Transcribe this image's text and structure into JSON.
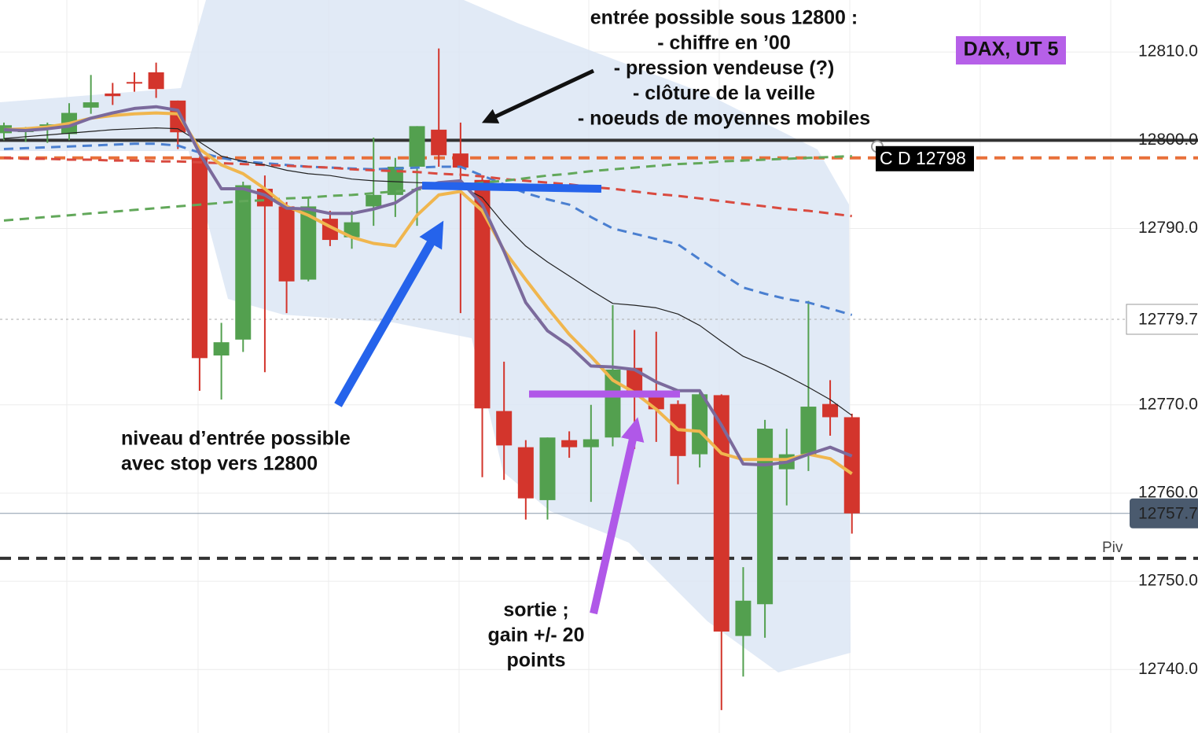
{
  "chart_data": {
    "type": "candlestick",
    "badge": "DAX, UT 5",
    "annotations": [
      {
        "lines": [
          "entrée possible sous 12800 :",
          "- chiffre en ’00",
          "- pression vendeuse (?)",
          "- clôture de la veille",
          "- noeuds de moyennes mobiles"
        ]
      },
      {
        "lines": [
          "niveau d’entrée possible",
          "avec stop vers 12800"
        ]
      },
      {
        "lines": [
          "sortie ;",
          "gain +/- 20",
          "points"
        ]
      }
    ],
    "categories": [
      null,
      null,
      null,
      null,
      null,
      null,
      null,
      null,
      null,
      null,
      null,
      null,
      null,
      null,
      null,
      null,
      null,
      null,
      null,
      null,
      null,
      null,
      null,
      null,
      null,
      null,
      null,
      null,
      null,
      null,
      null,
      null,
      null,
      null,
      null,
      null,
      null,
      null,
      null,
      null
    ],
    "open": [
      12800.8,
      12801.0,
      12801.7,
      12800.7,
      12803.7,
      12805.3,
      12806.6,
      12807.7,
      12804.5,
      12798.0,
      12775.6,
      12777.4,
      12794.5,
      12792.5,
      12784.2,
      12791.1,
      12789.0,
      12792.5,
      12793.8,
      12797.0,
      12801.2,
      12798.5,
      12795.5,
      12769.3,
      12765.2,
      12759.2,
      12766.0,
      12765.2,
      12766.3,
      12774.2,
      12771.6,
      12770.1,
      12764.4,
      12771.1,
      12743.8,
      12747.4,
      12762.7,
      12764.4,
      12770.1,
      12768.6
    ],
    "high": [
      12802.0,
      12801.5,
      12802.0,
      12804.2,
      12807.4,
      12806.5,
      12807.7,
      12808.8,
      12804.5,
      12798.0,
      12779.3,
      12795.3,
      12796.0,
      12793.0,
      12793.5,
      12792.0,
      12792.0,
      12800.3,
      12798.0,
      12801.6,
      12810.4,
      12802.0,
      12796.0,
      12774.9,
      12766.0,
      12766.3,
      12767.0,
      12770.0,
      12781.3,
      12778.5,
      12778.3,
      12770.5,
      12771.5,
      12771.2,
      12751.6,
      12768.3,
      12767.3,
      12781.8,
      12772.8,
      12769.0
    ],
    "low": [
      12800.0,
      12799.8,
      12799.7,
      12800.0,
      12803.0,
      12804.0,
      12805.5,
      12804.8,
      12799.0,
      12771.6,
      12770.6,
      12776.0,
      12773.7,
      12780.4,
      12784.0,
      12788.0,
      12787.7,
      12790.3,
      12791.3,
      12790.3,
      12797.0,
      12780.4,
      12761.8,
      12761.5,
      12757.0,
      12757.0,
      12764.0,
      12759.0,
      12765.3,
      12765.0,
      12765.8,
      12761.0,
      12762.9,
      12735.4,
      12739.2,
      12743.6,
      12758.6,
      12762.5,
      12766.5,
      12755.4
    ],
    "close": [
      12801.7,
      12801.1,
      12801.8,
      12803.1,
      12804.3,
      12805.0,
      12806.5,
      12805.8,
      12800.9,
      12775.3,
      12777.1,
      12794.9,
      12792.5,
      12784.0,
      12792.5,
      12788.7,
      12790.7,
      12793.8,
      12797.0,
      12801.6,
      12798.3,
      12796.9,
      12769.6,
      12765.4,
      12759.4,
      12766.3,
      12765.2,
      12766.1,
      12774.0,
      12771.6,
      12769.5,
      12764.2,
      12771.2,
      12744.3,
      12747.8,
      12767.3,
      12764.4,
      12769.8,
      12768.6,
      12757.7
    ],
    "up_color": "#53a04f",
    "down_color": "#d3352c",
    "series": [
      {
        "color": "#4a7fd0",
        "dashed": true,
        "values": [
          12799.0,
          12799.1,
          12799.2,
          12799.3,
          12799.4,
          12799.5,
          12799.6,
          12799.6,
          12799.4,
          12798.6,
          12798.0,
          12797.6,
          12797.4,
          12797.2,
          12797.0,
          12796.9,
          12796.8,
          12796.7,
          12796.8,
          12796.9,
          12797.0,
          12797.0,
          12796.0,
          12795.0,
          12794.0,
          12793.3,
          12792.7,
          12791.3,
          12790.0,
          12789.4,
          12788.8,
          12788.2,
          12786.5,
          12784.9,
          12783.3,
          12782.6,
          12782.0,
          12781.6,
          12780.9,
          12780.2
        ]
      },
      {
        "color": "#d94a3f",
        "dashed": true,
        "values": [
          12798.0,
          12797.9,
          12797.9,
          12797.8,
          12797.8,
          12797.7,
          12797.7,
          12797.6,
          12797.6,
          12797.5,
          12797.4,
          12797.3,
          12797.2,
          12797.1,
          12797.0,
          12796.9,
          12796.7,
          12796.6,
          12796.5,
          12796.4,
          12796.2,
          12796.1,
          12795.9,
          12795.6,
          12795.4,
          12795.2,
          12795.0,
          12794.7,
          12794.5,
          12794.2,
          12793.9,
          12793.7,
          12793.4,
          12793.1,
          12792.8,
          12792.5,
          12792.2,
          12792.0,
          12791.7,
          12791.4
        ]
      },
      {
        "color": "#62a85a",
        "dashed": true,
        "values": [
          12790.9,
          12791.1,
          12791.3,
          12791.5,
          12791.7,
          12791.9,
          12792.1,
          12792.3,
          12792.5,
          12792.7,
          12792.9,
          12793.1,
          12793.2,
          12793.4,
          12793.5,
          12793.7,
          12793.8,
          12794.0,
          12794.2,
          12794.4,
          12794.7,
          12794.9,
          12795.2,
          12795.4,
          12795.7,
          12796.0,
          12796.2,
          12796.5,
          12796.7,
          12796.9,
          12797.1,
          12797.3,
          12797.4,
          12797.6,
          12797.7,
          12797.8,
          12797.9,
          12798.0,
          12798.1,
          12798.2
        ]
      },
      {
        "color": "#222222",
        "dashed": false,
        "values": [
          12800.2,
          12800.4,
          12800.6,
          12800.8,
          12801.0,
          12801.2,
          12801.3,
          12801.4,
          12801.3,
          12799.8,
          12798.2,
          12797.6,
          12797.2,
          12796.6,
          12796.2,
          12796.0,
          12795.6,
          12795.4,
          12795.3,
          12795.2,
          12795.1,
          12794.8,
          12793.5,
          12790.5,
          12788.0,
          12786.2,
          12784.6,
          12783.0,
          12781.5,
          12781.3,
          12781.0,
          12780.3,
          12779.0,
          12777.2,
          12775.5,
          12774.5,
          12773.3,
          12772.0,
          12770.6,
          12768.8
        ]
      },
      {
        "color": "#f0b64e",
        "dashed": false,
        "values": [
          12801.2,
          12801.3,
          12801.5,
          12801.9,
          12802.5,
          12802.8,
          12803.0,
          12803.1,
          12803.0,
          12799.0,
          12797.2,
          12796.2,
          12794.5,
          12792.5,
          12791.5,
          12790.2,
          12789.0,
          12788.3,
          12788.0,
          12791.5,
          12793.8,
          12794.2,
          12792.0,
          12787.5,
          12784.2,
          12781.0,
          12778.0,
          12775.5,
          12772.8,
          12771.4,
          12769.5,
          12767.2,
          12767.0,
          12764.5,
          12763.8,
          12763.8,
          12763.8,
          12764.4,
          12763.9,
          12762.2
        ]
      },
      {
        "color": "#7b6a9c",
        "dashed": false,
        "values": [
          12801.2,
          12801.1,
          12801.3,
          12801.6,
          12802.5,
          12803.1,
          12803.6,
          12803.8,
          12803.4,
          12798.5,
          12794.5,
          12794.5,
          12793.8,
          12792.3,
          12792.2,
          12791.7,
          12791.7,
          12792.2,
          12792.9,
          12794.5,
          12795.2,
          12795.4,
          12792.7,
          12787.4,
          12781.6,
          12778.4,
          12776.7,
          12774.4,
          12774.3,
          12774.0,
          12772.6,
          12771.6,
          12771.6,
          12767.7,
          12763.3,
          12763.2,
          12763.5,
          12764.4,
          12765.2,
          12764.2
        ]
      }
    ],
    "reference_lines": [
      {
        "value": 12800,
        "color": "#333333",
        "dashed": false
      },
      {
        "value": 12798,
        "color": "#e8703a",
        "dashed": true,
        "label": "C D 12798"
      },
      {
        "value": 12752.6,
        "color": "#333333",
        "dashed": true,
        "label": "Piv"
      }
    ],
    "price_labels": [
      {
        "value": 12779.7,
        "label": "12779.7"
      },
      {
        "value": 12757.7,
        "label": "12757.7"
      }
    ],
    "ylim": [
      12732.8,
      12815.9
    ],
    "yticks": [
      {
        "value": 12740,
        "label": "12740.0"
      },
      {
        "value": 12750,
        "label": "12750.0"
      },
      {
        "value": 12760,
        "label": "12760.0"
      },
      {
        "value": 12770,
        "label": "12770.0"
      },
      {
        "value": 12790,
        "label": "12790.0"
      },
      {
        "value": 12800,
        "label": "12800.0"
      },
      {
        "value": 12810,
        "label": "12810.0"
      }
    ],
    "grid": true
  }
}
